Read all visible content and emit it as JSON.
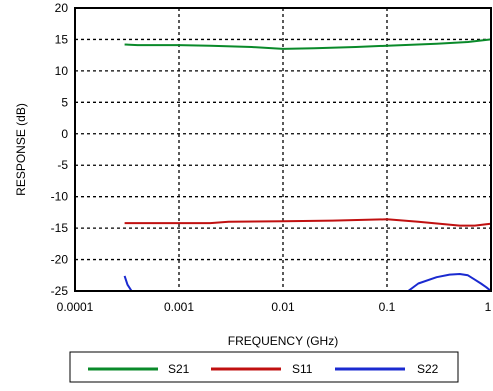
{
  "chart_data": {
    "type": "line",
    "xscale": "log",
    "xlim": [
      0.0001,
      1
    ],
    "ylim": [
      -25,
      20
    ],
    "grid": true,
    "legend_position": "bottom",
    "xlabel": "FREQUENCY (GHz)",
    "ylabel": "RESPONSE (dB)",
    "x_ticks": [
      0.0001,
      0.001,
      0.01,
      0.1,
      1
    ],
    "x_tick_labels": [
      "0.0001",
      "0.001",
      "0.01",
      "0.1",
      "1"
    ],
    "y_ticks": [
      20,
      15,
      10,
      5,
      0,
      -5,
      -10,
      -15,
      -20,
      -25
    ],
    "y_tick_labels": [
      "20",
      "15",
      "10",
      "5",
      "0",
      "-5",
      "-10",
      "-15",
      "-20",
      "-25"
    ],
    "series": [
      {
        "name": "S21",
        "color": "#0a8a2a",
        "x": [
          0.0003,
          0.0004,
          0.001,
          0.002,
          0.005,
          0.01,
          0.02,
          0.05,
          0.1,
          0.3,
          0.6,
          1
        ],
        "y": [
          14.2,
          14.1,
          14.1,
          14.0,
          13.8,
          13.5,
          13.6,
          13.8,
          14.0,
          14.3,
          14.6,
          15.0
        ]
      },
      {
        "name": "S11",
        "color": "#c01010",
        "x": [
          0.0003,
          0.001,
          0.002,
          0.003,
          0.01,
          0.03,
          0.1,
          0.2,
          0.5,
          0.7,
          0.9,
          1
        ],
        "y": [
          -14.2,
          -14.2,
          -14.2,
          -14.0,
          -13.9,
          -13.8,
          -13.6,
          -14.0,
          -14.6,
          -14.6,
          -14.4,
          -14.3
        ]
      },
      {
        "name": "S22",
        "color": "#1a2ad0",
        "segments": [
          {
            "x": [
              0.0003,
              0.00032,
              0.00035
            ],
            "y": [
              -22.6,
              -24.0,
              -25.0
            ]
          },
          {
            "x": [
              0.16,
              0.2,
              0.3,
              0.4,
              0.5,
              0.6,
              0.7,
              0.8,
              0.9,
              1
            ],
            "y": [
              -25.0,
              -23.8,
              -22.8,
              -22.4,
              -22.3,
              -22.5,
              -23.2,
              -23.8,
              -24.4,
              -25.0
            ]
          }
        ]
      }
    ]
  }
}
